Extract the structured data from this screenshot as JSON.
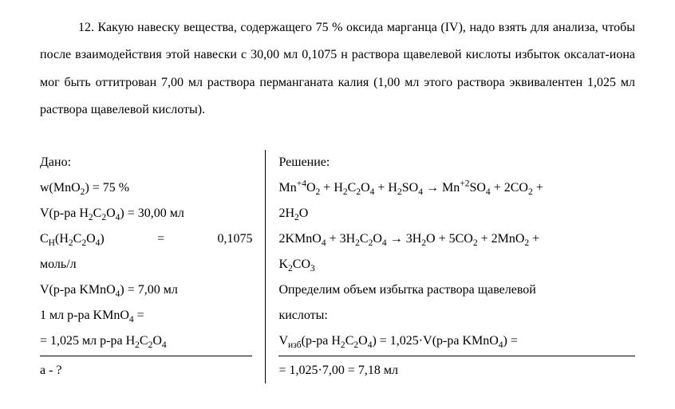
{
  "problem": {
    "number": "12.",
    "text_l1": "Какую навеску вещества, содержащего 75 % оксида марганца (IV),",
    "text_l2": "надо взять для анализа, чтобы после взаимодействия этой навески с 30,00 мл",
    "text_l3": "0,1075 н раствора щавелевой кислоты избыток оксалат-иона мог быть",
    "text_l4": "оттитрован 7,00 мл раствора перманганата калия (1,00 мл этого раствора",
    "text_l5": "эквивалентен 1,025 мл раствора щавелевой кислоты)."
  },
  "given": {
    "heading": "Дано:",
    "l1_a": "w(MnO",
    "l1_b": ") = 75 %",
    "l2_a": "V(р-ра H",
    "l2_b": "C",
    "l2_c": "O",
    "l2_d": ") = 30,00 мл",
    "l3_a": "С",
    "l3_b": "(H",
    "l3_c": "C",
    "l3_d": "O",
    "l3_e": ")",
    "l3_eq": "=",
    "l3_val": "0,1075",
    "l4": "моль/л",
    "l5_a": "V(р-ра KMnO",
    "l5_b": ") = 7,00 мл",
    "l6_a": "1 мл р-ра KMnO",
    "l6_b": " =",
    "l7_a": "= 1,025 мл р-ра H",
    "l7_b": "C",
    "l7_c": "O",
    "l8": "a - ?"
  },
  "solution": {
    "heading": "Решение:",
    "eq1_a": "Mn",
    "eq1_b": "O",
    "eq1_c": " + H",
    "eq1_d": "C",
    "eq1_e": "O",
    "eq1_f": " + H",
    "eq1_g": "SO",
    "eq1_h": " → Mn",
    "eq1_i": "SO",
    "eq1_j": " + 2CO",
    "eq1_k": " +",
    "eq1_l": "2H",
    "eq1_m": "O",
    "eq2_a": "2KMnO",
    "eq2_b": " + 3H",
    "eq2_c": "C",
    "eq2_d": "O",
    "eq2_e": " → 3H",
    "eq2_f": "O + 5CO",
    "eq2_g": " + 2MnO",
    "eq2_h": " +",
    "eq2_i": "K",
    "eq2_j": "CO",
    "l3": "Определим объем избытка раствора щавелевой",
    "l4": "кислоты:",
    "l5_a": "V",
    "l5_b": "(р-ра H",
    "l5_c": "C",
    "l5_d": "O",
    "l5_e": ") = 1,025·V(р-ра KMnO",
    "l5_f": ") =",
    "l6": "= 1,025·7,00 = 7,18 мл"
  },
  "style": {
    "font_family": "Times New Roman",
    "font_size_pt": 12,
    "text_color": "#000000",
    "background_color": "#ffffff",
    "line_height": 2.15,
    "border_color": "#000000"
  }
}
